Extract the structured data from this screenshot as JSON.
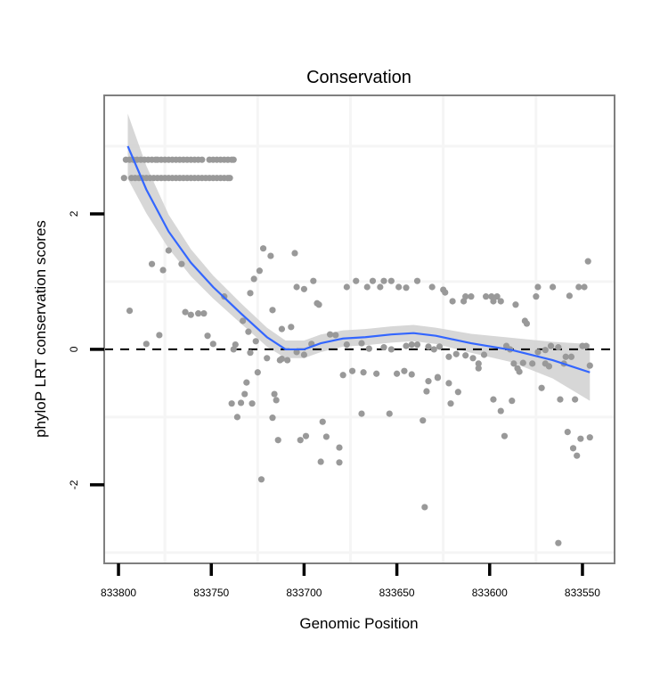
{
  "chart_data": {
    "type": "scatter",
    "title": "Conservation",
    "xlabel": "Genomic Position",
    "ylabel": "phyloP LRT conservation scores",
    "xlim": [
      833807.7,
      833532.7
    ],
    "x_reversed": true,
    "ylim": [
      -3.16,
      3.75
    ],
    "x_ticks": [
      833800,
      833750,
      833700,
      833650,
      833600,
      833550
    ],
    "x_tick_labels": [
      "833800",
      "833750",
      "833700",
      "833650",
      "833600",
      "833550"
    ],
    "y_ticks": [
      2,
      0,
      -2
    ],
    "y_tick_labels": [
      "2",
      "0",
      "-2"
    ],
    "x_grid": [
      833775,
      833725,
      833675,
      833625,
      833575
    ],
    "y_grid": [
      3,
      1,
      -1,
      -3
    ],
    "reference_line": {
      "y": 0,
      "style": "dashed"
    },
    "colors": {
      "points": "#999999",
      "smooth": "#3366FF",
      "band": "#D3D3D3",
      "panel_border": "#7f7f7f",
      "grid": "#f5f5f5"
    },
    "rows": [
      {
        "y": 2.8,
        "x": [
          833796,
          833794,
          833792,
          833790,
          833788,
          833786,
          833784,
          833782,
          833780,
          833779,
          833777,
          833775,
          833773,
          833771,
          833769,
          833767,
          833765,
          833763,
          833761,
          833759,
          833757,
          833755,
          833751,
          833749,
          833747,
          833745,
          833743,
          833741,
          833739,
          833738
        ]
      },
      {
        "y": 2.53,
        "x": [
          833797,
          833793,
          833791,
          833789,
          833787,
          833785,
          833783,
          833781,
          833779,
          833777,
          833775,
          833773,
          833771,
          833769,
          833767,
          833765,
          833763,
          833761,
          833759,
          833757,
          833755,
          833753,
          833751,
          833749,
          833747,
          833745,
          833743,
          833741,
          833740
        ]
      }
    ],
    "points": [
      [
        833773,
        1.46
      ],
      [
        833782,
        1.26
      ],
      [
        833776,
        1.17
      ],
      [
        833766,
        1.26
      ],
      [
        833794,
        0.57
      ],
      [
        833764,
        0.55
      ],
      [
        833761,
        0.51
      ],
      [
        833757,
        0.53
      ],
      [
        833754,
        0.53
      ],
      [
        833778,
        0.21
      ],
      [
        833785,
        0.08
      ],
      [
        833752,
        0.2
      ],
      [
        833749,
        0.08
      ],
      [
        833743,
        0.78
      ],
      [
        833737,
        0.07
      ],
      [
        833738,
        0.0
      ],
      [
        833733,
        0.42
      ],
      [
        833730,
        0.26
      ],
      [
        833726,
        0.12
      ],
      [
        833729,
        -0.05
      ],
      [
        833729,
        0.83
      ],
      [
        833727,
        1.04
      ],
      [
        833724,
        1.16
      ],
      [
        833722,
        1.49
      ],
      [
        833718,
        1.38
      ],
      [
        833717,
        0.58
      ],
      [
        833712,
        0.3
      ],
      [
        833720,
        -0.13
      ],
      [
        833713,
        -0.16
      ],
      [
        833725,
        -0.34
      ],
      [
        833731,
        -0.49
      ],
      [
        833732,
        -0.66
      ],
      [
        833739,
        -0.8
      ],
      [
        833734,
        -0.79
      ],
      [
        833728,
        -0.8
      ],
      [
        833736,
        -1.0
      ],
      [
        833716,
        -0.66
      ],
      [
        833715,
        -0.75
      ],
      [
        833717,
        -1.01
      ],
      [
        833714,
        -1.34
      ],
      [
        833723,
        -1.92
      ],
      [
        833705,
        1.42
      ],
      [
        833695,
        1.01
      ],
      [
        833704,
        0.92
      ],
      [
        833700,
        0.89
      ],
      [
        833693,
        0.68
      ],
      [
        833692,
        0.66
      ],
      [
        833707,
        0.33
      ],
      [
        833686,
        0.22
      ],
      [
        833683,
        0.21
      ],
      [
        833696,
        0.08
      ],
      [
        833677,
        0.07
      ],
      [
        833669,
        0.09
      ],
      [
        833665,
        0.01
      ],
      [
        833657,
        0.03
      ],
      [
        833653,
        0.0
      ],
      [
        833645,
        0.05
      ],
      [
        833642,
        0.07
      ],
      [
        833639,
        0.07
      ],
      [
        833633,
        0.04
      ],
      [
        833630,
        0.0
      ],
      [
        833627,
        0.04
      ],
      [
        833704,
        -0.04
      ],
      [
        833700,
        -0.08
      ],
      [
        833712,
        -0.14
      ],
      [
        833709,
        -0.16
      ],
      [
        833679,
        -0.38
      ],
      [
        833674,
        -0.32
      ],
      [
        833668,
        -0.34
      ],
      [
        833661,
        -0.36
      ],
      [
        833650,
        -0.36
      ],
      [
        833646,
        -0.32
      ],
      [
        833642,
        -0.37
      ],
      [
        833633,
        -0.47
      ],
      [
        833634,
        -0.62
      ],
      [
        833628,
        -0.41
      ],
      [
        833690,
        -1.07
      ],
      [
        833669,
        -0.95
      ],
      [
        833654,
        -0.95
      ],
      [
        833636,
        -1.05
      ],
      [
        833702,
        -1.34
      ],
      [
        833699,
        -1.28
      ],
      [
        833688,
        -1.29
      ],
      [
        833681,
        -1.45
      ],
      [
        833691,
        -1.66
      ],
      [
        833681,
        -1.67
      ],
      [
        833677,
        0.92
      ],
      [
        833672,
        1.01
      ],
      [
        833666,
        0.92
      ],
      [
        833663,
        1.01
      ],
      [
        833659,
        0.92
      ],
      [
        833657,
        1.01
      ],
      [
        833653,
        1.01
      ],
      [
        833649,
        0.92
      ],
      [
        833645,
        0.91
      ],
      [
        833639,
        1.01
      ],
      [
        833631,
        0.92
      ],
      [
        833625,
        0.88
      ],
      [
        833547,
        1.3
      ],
      [
        833624,
        0.84
      ],
      [
        833620,
        0.71
      ],
      [
        833614,
        0.71
      ],
      [
        833613,
        0.78
      ],
      [
        833610,
        0.78
      ],
      [
        833602,
        0.78
      ],
      [
        833599,
        0.78
      ],
      [
        833596,
        0.78
      ],
      [
        833598,
        0.71
      ],
      [
        833594,
        0.71
      ],
      [
        833586,
        0.66
      ],
      [
        833574,
        0.92
      ],
      [
        833566,
        0.92
      ],
      [
        833575,
        0.78
      ],
      [
        833557,
        0.79
      ],
      [
        833552,
        0.92
      ],
      [
        833549,
        0.92
      ],
      [
        833580,
        0.38
      ],
      [
        833581,
        0.42
      ],
      [
        833622,
        -0.11
      ],
      [
        833618,
        -0.07
      ],
      [
        833613,
        -0.09
      ],
      [
        833609,
        -0.13
      ],
      [
        833606,
        -0.21
      ],
      [
        833606,
        -0.28
      ],
      [
        833603,
        -0.08
      ],
      [
        833591,
        0.05
      ],
      [
        833589,
        0.0
      ],
      [
        833587,
        -0.21
      ],
      [
        833585,
        -0.28
      ],
      [
        833582,
        -0.2
      ],
      [
        833577,
        -0.21
      ],
      [
        833584,
        -0.33
      ],
      [
        833574,
        -0.04
      ],
      [
        833570,
        -0.01
      ],
      [
        833567,
        0.05
      ],
      [
        833563,
        0.03
      ],
      [
        833570,
        -0.21
      ],
      [
        833568,
        -0.25
      ],
      [
        833559,
        -0.11
      ],
      [
        833556,
        -0.11
      ],
      [
        833560,
        -0.21
      ],
      [
        833550,
        0.05
      ],
      [
        833548,
        0.05
      ],
      [
        833546,
        -0.24
      ],
      [
        833628,
        -0.42
      ],
      [
        833622,
        -0.5
      ],
      [
        833617,
        -0.63
      ],
      [
        833621,
        -0.8
      ],
      [
        833598,
        -0.74
      ],
      [
        833594,
        -0.91
      ],
      [
        833588,
        -0.76
      ],
      [
        833572,
        -0.57
      ],
      [
        833562,
        -0.74
      ],
      [
        833554,
        -0.74
      ],
      [
        833592,
        -1.28
      ],
      [
        833558,
        -1.22
      ],
      [
        833551,
        -1.32
      ],
      [
        833546,
        -1.3
      ],
      [
        833555,
        -1.46
      ],
      [
        833553,
        -1.57
      ],
      [
        833563,
        -2.86
      ],
      [
        833635,
        -2.33
      ]
    ],
    "smooth": {
      "x": [
        833795,
        833785,
        833773,
        833761,
        833749,
        833734,
        833720,
        833710,
        833700,
        833691,
        833679,
        833667,
        833653,
        833641,
        833629,
        833610,
        833588,
        833566,
        833546
      ],
      "y": [
        3.0,
        2.36,
        1.74,
        1.28,
        0.92,
        0.53,
        0.18,
        0.0,
        0.0,
        0.09,
        0.16,
        0.18,
        0.22,
        0.24,
        0.2,
        0.09,
        -0.01,
        -0.16,
        -0.34
      ],
      "se": [
        0.48,
        0.35,
        0.25,
        0.2,
        0.17,
        0.15,
        0.14,
        0.13,
        0.13,
        0.13,
        0.12,
        0.12,
        0.12,
        0.12,
        0.12,
        0.14,
        0.18,
        0.27,
        0.42
      ]
    }
  }
}
